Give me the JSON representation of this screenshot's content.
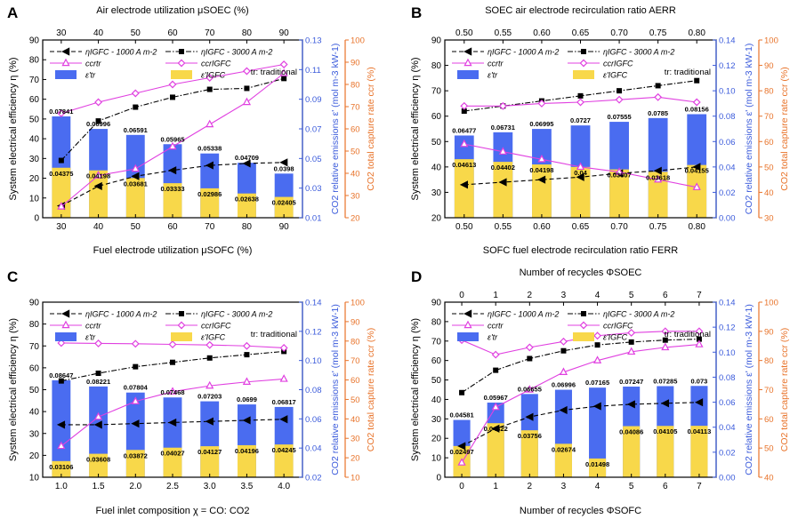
{
  "colors": {
    "blue": "#3b5bdb",
    "orange": "#e8732a",
    "magenta": "#e040e0",
    "bar_blue": "#4a6cf0",
    "bar_yellow": "#f8d84a",
    "black": "#000000"
  },
  "chart_data": [
    {
      "id": "A",
      "type": "bar+line",
      "panel_label": "A",
      "xlabel": "Fuel electrode utilization μSOFC (%)",
      "top_xlabel": "Air electrode utilization μSOEC (%)",
      "ylabel": "System electrical efficiency η (%)",
      "y2label": "CO2 relative emissions ε' (mol m-3 kW-1)",
      "y3label": "CO2 total capture rate ccr (%)",
      "categories": [
        "30",
        "40",
        "50",
        "60",
        "70",
        "80",
        "90"
      ],
      "top_ticks": [
        "30",
        "40",
        "50",
        "60",
        "70",
        "80",
        "90"
      ],
      "xlim": [
        25,
        95
      ],
      "x": [
        30,
        40,
        50,
        60,
        70,
        80,
        90
      ],
      "xticks": [
        "30",
        "40",
        "50",
        "60",
        "70",
        "80",
        "90"
      ],
      "ylim": [
        0,
        90
      ],
      "yticks": [
        "0",
        "10",
        "20",
        "30",
        "40",
        "50",
        "60",
        "70",
        "80",
        "90"
      ],
      "y2lim": [
        0.01,
        0.13
      ],
      "y2ticks": [
        "0.01",
        "0.03",
        "0.05",
        "0.07",
        "0.09",
        "0.11",
        "0.13"
      ],
      "y3lim": [
        20,
        100
      ],
      "y3ticks": [
        "20",
        "30",
        "40",
        "50",
        "60",
        "70",
        "80",
        "90",
        "100"
      ],
      "bar_width": 5,
      "series": [
        {
          "name": "ηIGFC - 1000 A m-2",
          "axis": "left",
          "style": "dashed-black-tri",
          "values": [
            6,
            16,
            21,
            24,
            26.5,
            27.5,
            28
          ]
        },
        {
          "name": "ηIGFC - 3000 A m-2",
          "axis": "left",
          "style": "dashdot-black-sq",
          "values": [
            29,
            49,
            56,
            61,
            65,
            65.5,
            70.5
          ]
        },
        {
          "name": "ccrtr",
          "axis": "right2",
          "style": "magenta-tri",
          "values": [
            25,
            39,
            42,
            52,
            62,
            72,
            85
          ]
        },
        {
          "name": "ccrIGFC",
          "axis": "right2",
          "style": "magenta-diamond",
          "values": [
            67,
            72,
            76,
            80,
            83,
            86,
            89
          ]
        },
        {
          "name": "ε'tr",
          "axis": "right",
          "style": "bar-blue",
          "values": [
            0.07841,
            0.06996,
            0.06591,
            0.05965,
            0.05338,
            0.04709,
            0.0398
          ],
          "labels": [
            "0.07841",
            "0.06996",
            "0.06591",
            "0.05965",
            "0.05338",
            "0.04709",
            "0.0398"
          ]
        },
        {
          "name": "ε'IGFC",
          "axis": "right",
          "style": "bar-yellow",
          "values": [
            0.04375,
            0.04198,
            0.03681,
            0.03333,
            0.02986,
            0.02638,
            0.02405
          ],
          "labels": [
            "0.04375",
            "0.04198",
            "0.03681",
            "0.03333",
            "0.02986",
            "0.02638",
            "0.02405"
          ]
        }
      ],
      "legend": [
        "ηIGFC - 1000 A m-2",
        "ηIGFC - 3000 A m-2",
        "ccrtr",
        "ccrIGFC",
        "ε'tr",
        "ε'IGFC"
      ],
      "annotation": "tr: traditional"
    },
    {
      "id": "B",
      "type": "bar+line",
      "panel_label": "B",
      "xlabel": "SOFC fuel electrode recirculation ratio FERR",
      "top_xlabel": "SOEC air electrode recirculation ratio AERR",
      "ylabel": "System electrical efficiency η (%)",
      "y2label": "CO2 relative emissions ε' (mol m-3 kW-1)",
      "y3label": "CO2 total capture rate ccr (%)",
      "categories": [
        "0.50",
        "0.55",
        "0.60",
        "0.65",
        "0.70",
        "0.75",
        "0.80"
      ],
      "top_ticks": [
        "0.50",
        "0.55",
        "0.60",
        "0.65",
        "0.70",
        "0.75",
        "0.80"
      ],
      "xlim": [
        0.475,
        0.825
      ],
      "x": [
        0.5,
        0.55,
        0.6,
        0.65,
        0.7,
        0.75,
        0.8
      ],
      "xticks": [
        "0.50",
        "0.55",
        "0.60",
        "0.65",
        "0.70",
        "0.75",
        "0.80"
      ],
      "ylim": [
        20,
        90
      ],
      "yticks": [
        "20",
        "30",
        "40",
        "50",
        "60",
        "70",
        "80",
        "90"
      ],
      "y2lim": [
        0.0,
        0.14
      ],
      "y2ticks": [
        "0.00",
        "0.02",
        "0.04",
        "0.06",
        "0.08",
        "0.10",
        "0.12",
        "0.14"
      ],
      "y3lim": [
        30,
        100
      ],
      "y3ticks": [
        "30",
        "40",
        "50",
        "60",
        "70",
        "80",
        "90",
        "100"
      ],
      "bar_width": 0.025,
      "series": [
        {
          "name": "ηIGFC - 1000 A m-2",
          "axis": "left",
          "style": "dashed-black-tri",
          "values": [
            33,
            34,
            35,
            36,
            37.5,
            38.5,
            40
          ]
        },
        {
          "name": "ηIGFC - 3000 A m-2",
          "axis": "left",
          "style": "dashdot-black-sq",
          "values": [
            62,
            64,
            66,
            68,
            70,
            72,
            74
          ]
        },
        {
          "name": "ccrtr",
          "axis": "right2",
          "style": "magenta-tri",
          "values": [
            59,
            56,
            53,
            50,
            48,
            45,
            42
          ]
        },
        {
          "name": "ccrIGFC",
          "axis": "right2",
          "style": "magenta-diamond",
          "values": [
            74,
            74,
            75,
            75.5,
            76.5,
            77.5,
            75.5
          ]
        },
        {
          "name": "ε'tr",
          "axis": "right",
          "style": "bar-blue",
          "values": [
            0.06477,
            0.06731,
            0.06995,
            0.0727,
            0.07555,
            0.0785,
            0.08156
          ],
          "labels": [
            "0.06477",
            "0.06731",
            "0.06995",
            "0.0727",
            "0.07555",
            "0.0785",
            "0.08156"
          ]
        },
        {
          "name": "ε'IGFC",
          "axis": "right",
          "style": "bar-yellow",
          "values": [
            0.04613,
            0.04402,
            0.04198,
            0.04,
            0.03807,
            0.03618,
            0.04155
          ],
          "labels": [
            "0.04613",
            "0.04402",
            "0.04198",
            "0.04",
            "0.03807",
            "0.03618",
            "0.04155"
          ]
        }
      ],
      "legend": [
        "ηIGFC - 1000 A m-2",
        "ηIGFC - 3000 A m-2",
        "ccrtr",
        "ccrIGFC",
        "ε'tr",
        "ε'IGFC"
      ],
      "annotation": "tr: traditional"
    },
    {
      "id": "C",
      "type": "bar+line",
      "panel_label": "C",
      "xlabel": "Fuel inlet composition χ = CO:  CO2",
      "top_xlabel": "",
      "ylabel": "System electrical efficiency η (%)",
      "y2label": "CO2 relative emissions ε' (mol m-3 kW-1)",
      "y3label": "CO2 total capture rate ccr (%)",
      "categories": [
        "1.0",
        "1.5",
        "2.0",
        "2.5",
        "3.0",
        "3.5",
        "4.0"
      ],
      "top_ticks": [],
      "xlim": [
        0.75,
        4.25
      ],
      "x": [
        1.0,
        1.5,
        2.0,
        2.5,
        3.0,
        3.5,
        4.0
      ],
      "xticks": [
        "1.0",
        "1.5",
        "2.0",
        "2.5",
        "3.0",
        "3.5",
        "4.0"
      ],
      "ylim": [
        10,
        90
      ],
      "yticks": [
        "10",
        "20",
        "30",
        "40",
        "50",
        "60",
        "70",
        "80",
        "90"
      ],
      "y2lim": [
        0.02,
        0.14
      ],
      "y2ticks": [
        "0.02",
        "0.04",
        "0.06",
        "0.08",
        "0.10",
        "0.12",
        "0.14"
      ],
      "y3lim": [
        10,
        100
      ],
      "y3ticks": [
        "10",
        "20",
        "30",
        "40",
        "50",
        "60",
        "70",
        "80",
        "90",
        "100"
      ],
      "bar_width": 0.25,
      "series": [
        {
          "name": "ηIGFC - 1000 A m-2",
          "axis": "left",
          "style": "dashed-black-tri",
          "values": [
            34,
            34,
            34.5,
            35,
            35.5,
            36,
            36.5
          ]
        },
        {
          "name": "ηIGFC - 3000 A m-2",
          "axis": "left",
          "style": "dashdot-black-sq",
          "values": [
            54,
            57.5,
            60.5,
            62.5,
            64.5,
            66,
            67.5
          ]
        },
        {
          "name": "ccrtr",
          "axis": "right2",
          "style": "magenta-tri",
          "values": [
            26,
            41,
            49,
            54,
            57,
            59,
            60.5
          ]
        },
        {
          "name": "ccrIGFC",
          "axis": "right2",
          "style": "magenta-diamond",
          "values": [
            79,
            78.8,
            78.6,
            78.3,
            78,
            77.5,
            76.5
          ]
        },
        {
          "name": "ε'tr",
          "axis": "right",
          "style": "bar-blue",
          "values": [
            0.08647,
            0.08221,
            0.07804,
            0.07468,
            0.07203,
            0.0699,
            0.06817
          ],
          "labels": [
            "0.08647",
            "0.08221",
            "0.07804",
            "0.07468",
            "0.07203",
            "0.0699",
            "0.06817"
          ]
        },
        {
          "name": "ε'IGFC",
          "axis": "right",
          "style": "bar-yellow",
          "values": [
            0.03106,
            0.03608,
            0.03872,
            0.04027,
            0.04127,
            0.04196,
            0.04245
          ],
          "labels": [
            "0.03106",
            "0.03608",
            "0.03872",
            "0.04027",
            "0.04127",
            "0.04196",
            "0.04245"
          ]
        }
      ],
      "legend": [
        "ηIGFC - 1000 A m-2",
        "ηIGFC - 3000 A m-2",
        "ccrtr",
        "ccrIGFC",
        "ε'tr",
        "ε'IGFC"
      ],
      "annotation": "tr: traditional"
    },
    {
      "id": "D",
      "type": "bar+line",
      "panel_label": "D",
      "xlabel": "Number of recycles ΦSOFC",
      "top_xlabel": "Number of recycles ΦSOEC",
      "ylabel": "System electrical efficiency η (%)",
      "y2label": "CO2 relative emissions ε' (mol m-3 kW-1)",
      "y3label": "CO2 total capture rate ccr (%)",
      "categories": [
        "0",
        "1",
        "2",
        "3",
        "4",
        "5",
        "6",
        "7"
      ],
      "top_ticks": [
        "0",
        "1",
        "2",
        "3",
        "4",
        "5",
        "6",
        "7"
      ],
      "xlim": [
        -0.5,
        7.5
      ],
      "x": [
        0,
        1,
        2,
        3,
        4,
        5,
        6,
        7
      ],
      "xticks": [
        "0",
        "1",
        "2",
        "3",
        "4",
        "5",
        "6",
        "7"
      ],
      "ylim": [
        0,
        90
      ],
      "yticks": [
        "0",
        "10",
        "20",
        "30",
        "40",
        "50",
        "60",
        "70",
        "80",
        "90"
      ],
      "y2lim": [
        0.0,
        0.14
      ],
      "y2ticks": [
        "0.00",
        "0.02",
        "0.04",
        "0.06",
        "0.08",
        "0.10",
        "0.12",
        "0.14"
      ],
      "y3lim": [
        40,
        100
      ],
      "y3ticks": [
        "40",
        "50",
        "60",
        "70",
        "80",
        "90",
        "100"
      ],
      "bar_width": 0.5,
      "series": [
        {
          "name": "ηIGFC - 1000 A m-2",
          "axis": "left",
          "style": "dashed-black-tri",
          "values": [
            16,
            25,
            31,
            34.5,
            36.5,
            37.5,
            38,
            38.5
          ]
        },
        {
          "name": "ηIGFC - 3000 A m-2",
          "axis": "left",
          "style": "dashdot-black-sq",
          "values": [
            43.5,
            55,
            61,
            65,
            68,
            69.5,
            70.5,
            71
          ]
        },
        {
          "name": "ccrtr",
          "axis": "right2",
          "style": "magenta-tri",
          "values": [
            45,
            64,
            70,
            76,
            80,
            83,
            84.5,
            85.5
          ]
        },
        {
          "name": "ccrIGFC",
          "axis": "right2",
          "style": "magenta-diamond",
          "values": [
            87,
            82,
            84.5,
            86.5,
            88.5,
            89.5,
            90,
            90
          ]
        },
        {
          "name": "ε'tr",
          "axis": "right",
          "style": "bar-blue",
          "values": [
            0.04581,
            0.05967,
            0.06655,
            0.06996,
            0.07165,
            0.07247,
            0.07285,
            0.073
          ],
          "labels": [
            "0.04581",
            "0.05967",
            "0.06655",
            "0.06996",
            "0.07165",
            "0.07247",
            "0.07285",
            "0.073"
          ]
        },
        {
          "name": "ε'IGFC",
          "axis": "right",
          "style": "bar-yellow",
          "values": [
            0.02497,
            0.04322,
            0.03756,
            0.02674,
            0.01498,
            0.04086,
            0.04105,
            0.04113
          ],
          "labels": [
            "0.02497",
            "0.04322",
            "0.03756",
            "0.02674",
            "0.01498",
            "0.04086",
            "0.04105",
            "0.04113"
          ]
        }
      ],
      "legend": [
        "ηIGFC - 1000 A m-2",
        "ηIGFC - 3000 A m-2",
        "ccrtr",
        "ccrIGFC",
        "ε'tr",
        "ε'IGFC"
      ],
      "annotation": "tr: traditional"
    }
  ]
}
